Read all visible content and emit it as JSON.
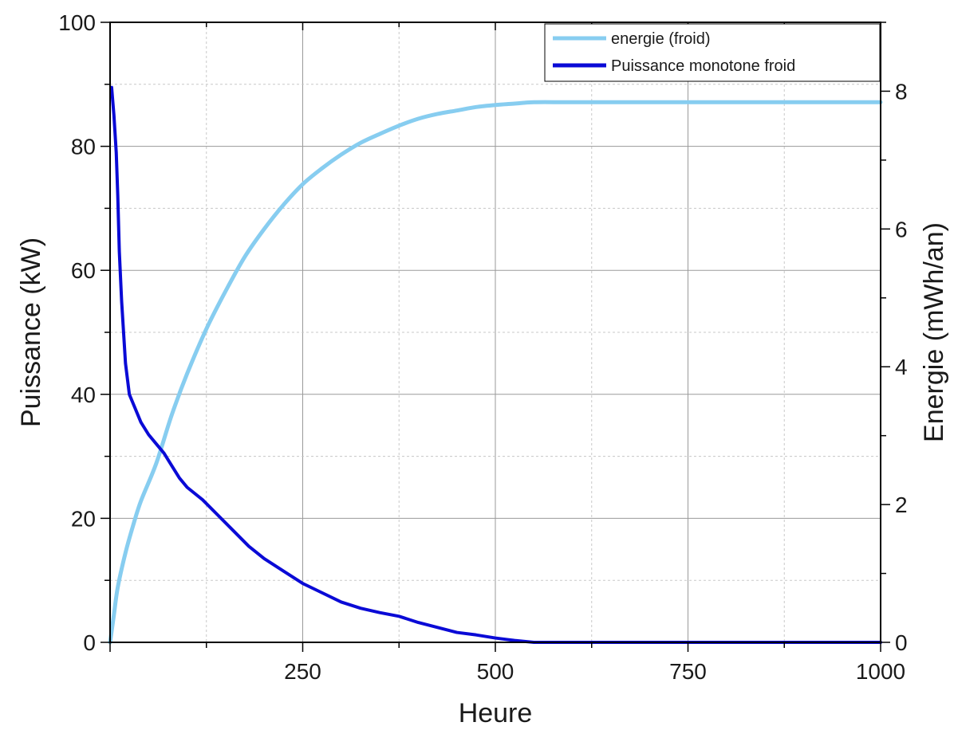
{
  "chart_data": {
    "type": "line",
    "title": "",
    "xlabel": "Heure",
    "ylabel_left": "Puissance (kW)",
    "ylabel_right": "Energie (mWh/an)",
    "xlim": [
      0,
      1000
    ],
    "ylim_left": [
      0,
      100
    ],
    "ylim_right": [
      0,
      9
    ],
    "x_ticks": [
      250,
      500,
      750,
      1000
    ],
    "x_tick_labels": [
      "250",
      "500",
      "750",
      "1000"
    ],
    "y_left_ticks": [
      0,
      20,
      40,
      60,
      80,
      100
    ],
    "y_left_tick_labels": [
      "0",
      "20",
      "40",
      "60",
      "80",
      "100"
    ],
    "y_right_ticks": [
      0,
      2,
      4,
      6,
      8
    ],
    "y_right_tick_labels": [
      "0",
      "2",
      "4",
      "6",
      "8"
    ],
    "grid": true,
    "legend_position": "top-right",
    "series": [
      {
        "name": "energie (froid)",
        "axis": "right",
        "color": "#87cdf0",
        "x": [
          0,
          5,
          10,
          20,
          30,
          40,
          60,
          80,
          100,
          125,
          150,
          175,
          200,
          225,
          250,
          275,
          300,
          325,
          350,
          375,
          400,
          425,
          450,
          475,
          500,
          525,
          550,
          600,
          700,
          800,
          900,
          1000
        ],
        "y": [
          0,
          0.4,
          0.8,
          1.3,
          1.7,
          2.05,
          2.6,
          3.3,
          3.9,
          4.55,
          5.1,
          5.6,
          6.0,
          6.35,
          6.65,
          6.88,
          7.08,
          7.25,
          7.38,
          7.5,
          7.6,
          7.67,
          7.72,
          7.77,
          7.8,
          7.82,
          7.84,
          7.84,
          7.84,
          7.84,
          7.84,
          7.84
        ]
      },
      {
        "name": "Puissance monotone froid",
        "axis": "left",
        "color": "#0a0ad6",
        "x": [
          2,
          5,
          8,
          10,
          12,
          15,
          18,
          20,
          25,
          30,
          35,
          40,
          50,
          60,
          70,
          80,
          90,
          100,
          120,
          140,
          160,
          180,
          200,
          225,
          250,
          275,
          300,
          325,
          350,
          375,
          400,
          425,
          450,
          475,
          500,
          525,
          550,
          600,
          700,
          800,
          900,
          1000
        ],
        "y": [
          89.5,
          85,
          79,
          72,
          63,
          55,
          49,
          45,
          40,
          38.5,
          37,
          35.5,
          33.5,
          32,
          30.5,
          28.5,
          26.5,
          25,
          23,
          20.5,
          18,
          15.5,
          13.5,
          11.5,
          9.5,
          8,
          6.5,
          5.5,
          4.8,
          4.2,
          3.2,
          2.4,
          1.6,
          1.2,
          0.7,
          0.3,
          0,
          0,
          0,
          0,
          0,
          0
        ]
      }
    ]
  }
}
